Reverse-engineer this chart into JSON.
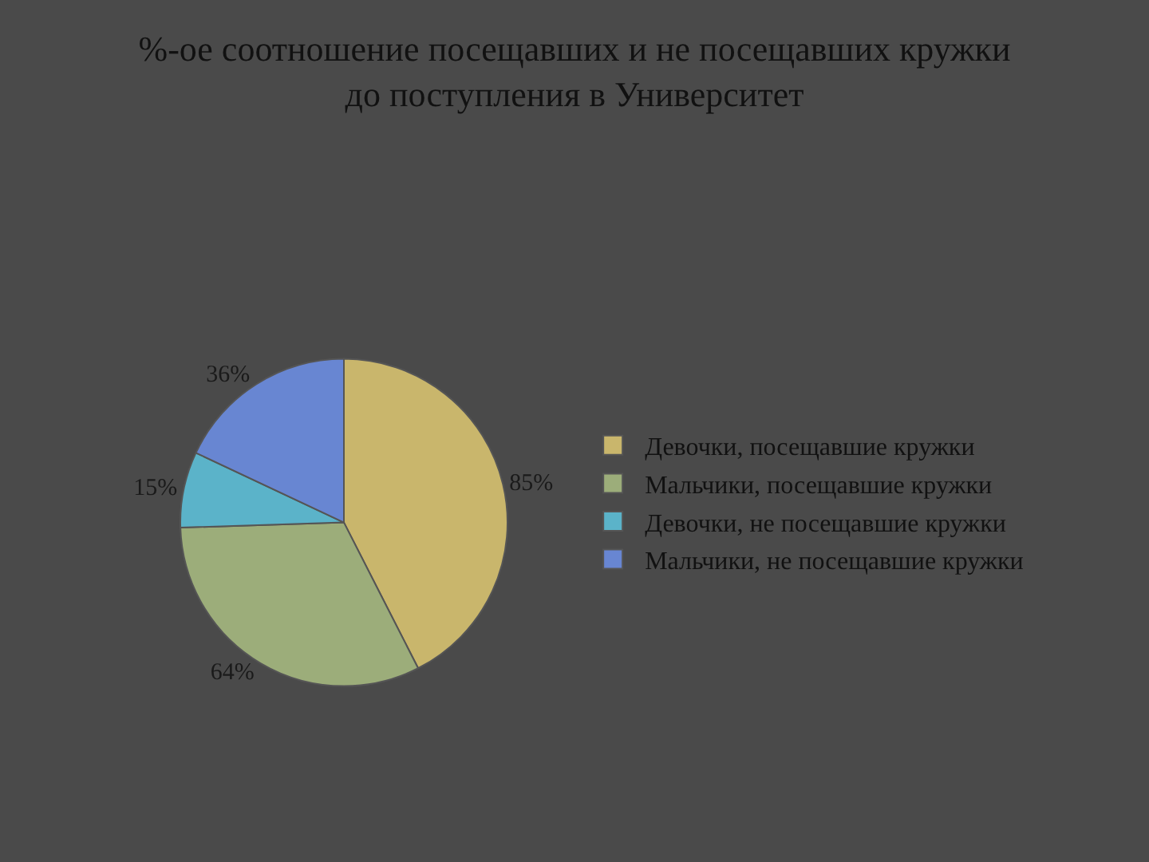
{
  "chart_data": {
    "type": "pie",
    "title": "%-ое соотношение посещавших и не посещавших кружки до поступления в Университет",
    "categories": [
      "Девочки, посещавшие кружки",
      "Мальчики, посещавшие кружки",
      "Девочки, не посещавшие кружки",
      "Мальчики, не посещавшие кружки"
    ],
    "values": [
      85,
      64,
      15,
      36
    ],
    "value_labels": [
      "85%",
      "64%",
      "15%",
      "36%"
    ],
    "colors": [
      "#c9b66c",
      "#9cad7a",
      "#5bb3c9",
      "#6886d2"
    ],
    "legend": "right"
  }
}
